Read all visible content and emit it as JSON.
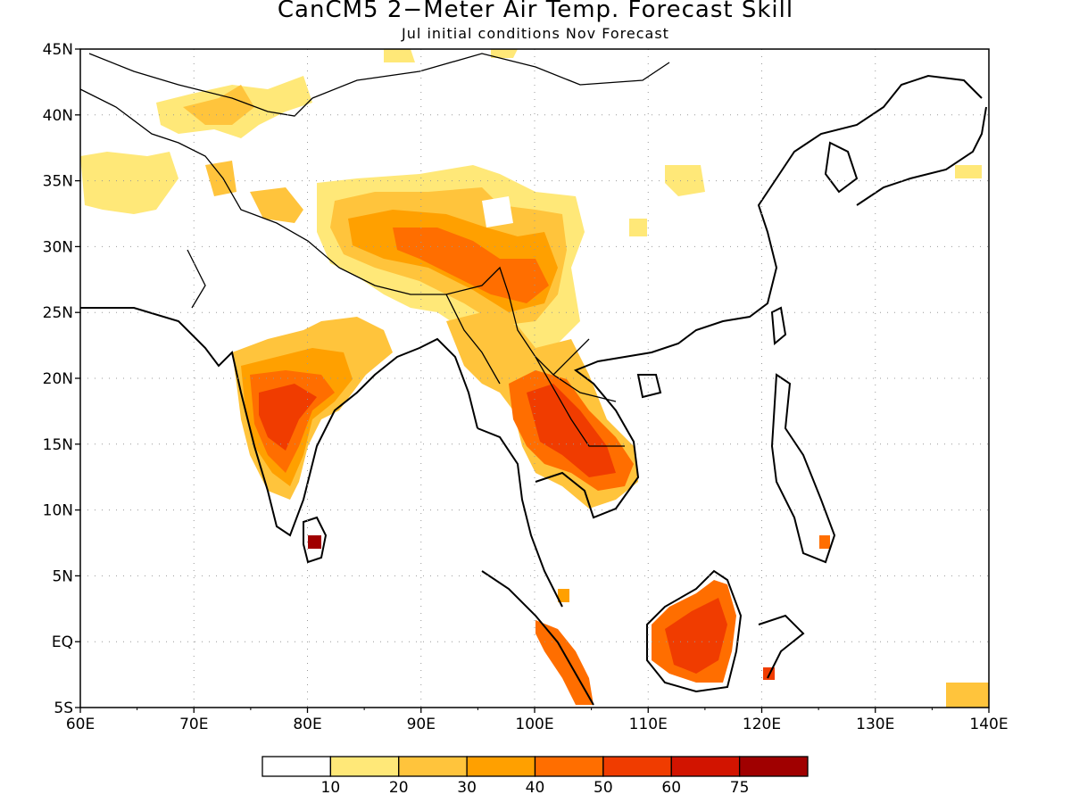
{
  "title": "CanCM5 2−Meter Air Temp. Forecast Skill",
  "subtitle": "Jul initial conditions   Nov Forecast",
  "map": {
    "lon_range": [
      60,
      140
    ],
    "lat_range": [
      -5,
      45
    ],
    "lon_labels": [
      "60E",
      "70E",
      "80E",
      "90E",
      "100E",
      "110E",
      "120E",
      "130E",
      "140E"
    ],
    "lat_labels": [
      "5S",
      "EQ",
      "5N",
      "10N",
      "15N",
      "20N",
      "25N",
      "30N",
      "35N",
      "40N",
      "45N"
    ],
    "grid": true
  },
  "legend": {
    "labels": [
      "10",
      "20",
      "30",
      "40",
      "50",
      "60",
      "75"
    ],
    "colors": [
      "#ffffff",
      "#ffe878",
      "#ffc43c",
      "#ffa000",
      "#ff6e00",
      "#f03c00",
      "#d21400",
      "#a00000"
    ]
  }
}
